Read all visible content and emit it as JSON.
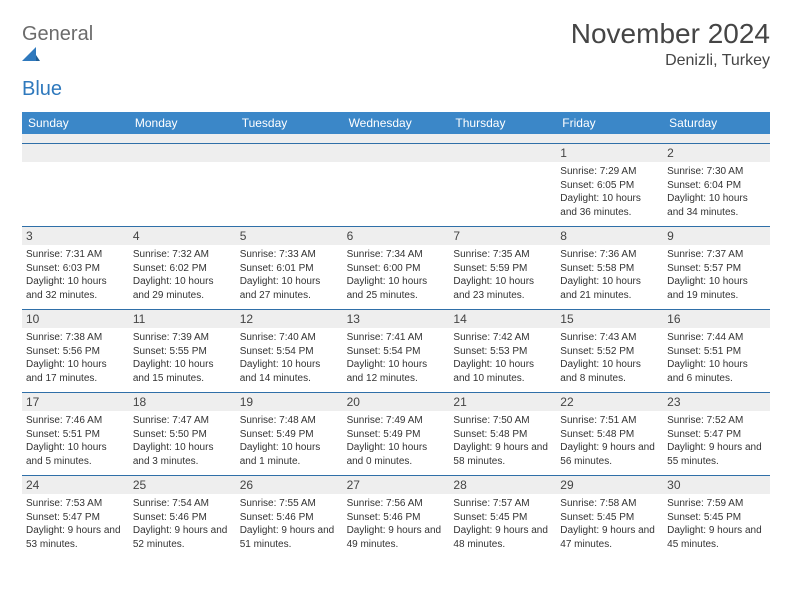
{
  "logo": {
    "word1": "General",
    "word2": "Blue"
  },
  "title": "November 2024",
  "location": "Denizli, Turkey",
  "weekdays": [
    "Sunday",
    "Monday",
    "Tuesday",
    "Wednesday",
    "Thursday",
    "Friday",
    "Saturday"
  ],
  "colors": {
    "header_bar": "#3b87c8",
    "week_divider": "#2f6fa8",
    "daynum_bg": "#eeeeee",
    "text": "#333333",
    "logo_gray": "#6b6b6b",
    "logo_blue": "#2f79bd"
  },
  "weeks": [
    [
      {
        "n": "",
        "sr": "",
        "ss": "",
        "dl": ""
      },
      {
        "n": "",
        "sr": "",
        "ss": "",
        "dl": ""
      },
      {
        "n": "",
        "sr": "",
        "ss": "",
        "dl": ""
      },
      {
        "n": "",
        "sr": "",
        "ss": "",
        "dl": ""
      },
      {
        "n": "",
        "sr": "",
        "ss": "",
        "dl": ""
      },
      {
        "n": "1",
        "sr": "Sunrise: 7:29 AM",
        "ss": "Sunset: 6:05 PM",
        "dl": "Daylight: 10 hours and 36 minutes."
      },
      {
        "n": "2",
        "sr": "Sunrise: 7:30 AM",
        "ss": "Sunset: 6:04 PM",
        "dl": "Daylight: 10 hours and 34 minutes."
      }
    ],
    [
      {
        "n": "3",
        "sr": "Sunrise: 7:31 AM",
        "ss": "Sunset: 6:03 PM",
        "dl": "Daylight: 10 hours and 32 minutes."
      },
      {
        "n": "4",
        "sr": "Sunrise: 7:32 AM",
        "ss": "Sunset: 6:02 PM",
        "dl": "Daylight: 10 hours and 29 minutes."
      },
      {
        "n": "5",
        "sr": "Sunrise: 7:33 AM",
        "ss": "Sunset: 6:01 PM",
        "dl": "Daylight: 10 hours and 27 minutes."
      },
      {
        "n": "6",
        "sr": "Sunrise: 7:34 AM",
        "ss": "Sunset: 6:00 PM",
        "dl": "Daylight: 10 hours and 25 minutes."
      },
      {
        "n": "7",
        "sr": "Sunrise: 7:35 AM",
        "ss": "Sunset: 5:59 PM",
        "dl": "Daylight: 10 hours and 23 minutes."
      },
      {
        "n": "8",
        "sr": "Sunrise: 7:36 AM",
        "ss": "Sunset: 5:58 PM",
        "dl": "Daylight: 10 hours and 21 minutes."
      },
      {
        "n": "9",
        "sr": "Sunrise: 7:37 AM",
        "ss": "Sunset: 5:57 PM",
        "dl": "Daylight: 10 hours and 19 minutes."
      }
    ],
    [
      {
        "n": "10",
        "sr": "Sunrise: 7:38 AM",
        "ss": "Sunset: 5:56 PM",
        "dl": "Daylight: 10 hours and 17 minutes."
      },
      {
        "n": "11",
        "sr": "Sunrise: 7:39 AM",
        "ss": "Sunset: 5:55 PM",
        "dl": "Daylight: 10 hours and 15 minutes."
      },
      {
        "n": "12",
        "sr": "Sunrise: 7:40 AM",
        "ss": "Sunset: 5:54 PM",
        "dl": "Daylight: 10 hours and 14 minutes."
      },
      {
        "n": "13",
        "sr": "Sunrise: 7:41 AM",
        "ss": "Sunset: 5:54 PM",
        "dl": "Daylight: 10 hours and 12 minutes."
      },
      {
        "n": "14",
        "sr": "Sunrise: 7:42 AM",
        "ss": "Sunset: 5:53 PM",
        "dl": "Daylight: 10 hours and 10 minutes."
      },
      {
        "n": "15",
        "sr": "Sunrise: 7:43 AM",
        "ss": "Sunset: 5:52 PM",
        "dl": "Daylight: 10 hours and 8 minutes."
      },
      {
        "n": "16",
        "sr": "Sunrise: 7:44 AM",
        "ss": "Sunset: 5:51 PM",
        "dl": "Daylight: 10 hours and 6 minutes."
      }
    ],
    [
      {
        "n": "17",
        "sr": "Sunrise: 7:46 AM",
        "ss": "Sunset: 5:51 PM",
        "dl": "Daylight: 10 hours and 5 minutes."
      },
      {
        "n": "18",
        "sr": "Sunrise: 7:47 AM",
        "ss": "Sunset: 5:50 PM",
        "dl": "Daylight: 10 hours and 3 minutes."
      },
      {
        "n": "19",
        "sr": "Sunrise: 7:48 AM",
        "ss": "Sunset: 5:49 PM",
        "dl": "Daylight: 10 hours and 1 minute."
      },
      {
        "n": "20",
        "sr": "Sunrise: 7:49 AM",
        "ss": "Sunset: 5:49 PM",
        "dl": "Daylight: 10 hours and 0 minutes."
      },
      {
        "n": "21",
        "sr": "Sunrise: 7:50 AM",
        "ss": "Sunset: 5:48 PM",
        "dl": "Daylight: 9 hours and 58 minutes."
      },
      {
        "n": "22",
        "sr": "Sunrise: 7:51 AM",
        "ss": "Sunset: 5:48 PM",
        "dl": "Daylight: 9 hours and 56 minutes."
      },
      {
        "n": "23",
        "sr": "Sunrise: 7:52 AM",
        "ss": "Sunset: 5:47 PM",
        "dl": "Daylight: 9 hours and 55 minutes."
      }
    ],
    [
      {
        "n": "24",
        "sr": "Sunrise: 7:53 AM",
        "ss": "Sunset: 5:47 PM",
        "dl": "Daylight: 9 hours and 53 minutes."
      },
      {
        "n": "25",
        "sr": "Sunrise: 7:54 AM",
        "ss": "Sunset: 5:46 PM",
        "dl": "Daylight: 9 hours and 52 minutes."
      },
      {
        "n": "26",
        "sr": "Sunrise: 7:55 AM",
        "ss": "Sunset: 5:46 PM",
        "dl": "Daylight: 9 hours and 51 minutes."
      },
      {
        "n": "27",
        "sr": "Sunrise: 7:56 AM",
        "ss": "Sunset: 5:46 PM",
        "dl": "Daylight: 9 hours and 49 minutes."
      },
      {
        "n": "28",
        "sr": "Sunrise: 7:57 AM",
        "ss": "Sunset: 5:45 PM",
        "dl": "Daylight: 9 hours and 48 minutes."
      },
      {
        "n": "29",
        "sr": "Sunrise: 7:58 AM",
        "ss": "Sunset: 5:45 PM",
        "dl": "Daylight: 9 hours and 47 minutes."
      },
      {
        "n": "30",
        "sr": "Sunrise: 7:59 AM",
        "ss": "Sunset: 5:45 PM",
        "dl": "Daylight: 9 hours and 45 minutes."
      }
    ]
  ]
}
